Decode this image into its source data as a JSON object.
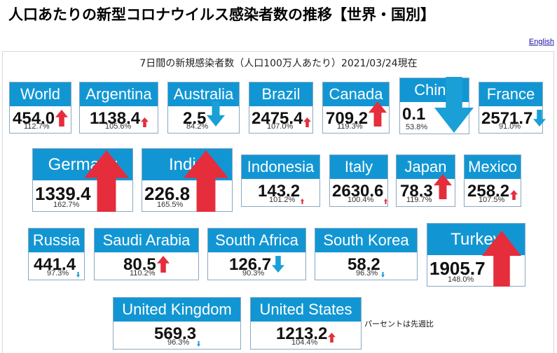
{
  "page_title": "人口あたりの新型コロナウイルス感染者数の推移【世界・国別】",
  "english_link": "English",
  "subtitle": "7日間の新規感染者数（人口100万人あたり）2021/03/24現在",
  "note": "パーセントは先週比",
  "colors": {
    "header": "#1296d3",
    "up": "#e52d3c",
    "down": "#1a9fd6"
  },
  "countries": [
    {
      "name": "World",
      "value": "454.0",
      "pct": "112.7%",
      "trend": "up",
      "change": 112.7
    },
    {
      "name": "Argentina",
      "value": "1138.4",
      "pct": "105.6%",
      "trend": "up",
      "change": 105.6
    },
    {
      "name": "Australia",
      "value": "2.5",
      "pct": "84.2%",
      "trend": "down",
      "change": 84.2
    },
    {
      "name": "Brazil",
      "value": "2475.4",
      "pct": "107.0%",
      "trend": "up",
      "change": 107.0
    },
    {
      "name": "Canada",
      "value": "709.2",
      "pct": "119.3%",
      "trend": "up",
      "change": 119.3
    },
    {
      "name": "China",
      "value": "0.1",
      "pct": "53.8%",
      "trend": "down",
      "change": 53.8
    },
    {
      "name": "France",
      "value": "2571.7",
      "pct": "91.0%",
      "trend": "down",
      "change": 91.0
    },
    {
      "name": "Germany",
      "value": "1339.4",
      "pct": "162.7%",
      "trend": "up",
      "change": 162.7
    },
    {
      "name": "India",
      "value": "226.8",
      "pct": "165.5%",
      "trend": "up",
      "change": 165.5
    },
    {
      "name": "Indonesia",
      "value": "143.2",
      "pct": "101.2%",
      "trend": "up",
      "change": 101.2
    },
    {
      "name": "Italy",
      "value": "2630.6",
      "pct": "100.4%",
      "trend": "up",
      "change": 100.4
    },
    {
      "name": "Japan",
      "value": "78.3",
      "pct": "119.7%",
      "trend": "up",
      "change": 119.7
    },
    {
      "name": "Mexico",
      "value": "258.2",
      "pct": "107.5%",
      "trend": "up",
      "change": 107.5
    },
    {
      "name": "Russia",
      "value": "441.4",
      "pct": "97.3%",
      "trend": "down",
      "change": 97.3
    },
    {
      "name": "Saudi Arabia",
      "value": "80.5",
      "pct": "110.2%",
      "trend": "up",
      "change": 110.2
    },
    {
      "name": "South Africa",
      "value": "126.7",
      "pct": "90.3%",
      "trend": "down",
      "change": 90.3
    },
    {
      "name": "South Korea",
      "value": "58.2",
      "pct": "96.3%",
      "trend": "down",
      "change": 96.3
    },
    {
      "name": "Turkey",
      "value": "1905.7",
      "pct": "148.0%",
      "trend": "up",
      "change": 148.0
    },
    {
      "name": "United Kingdom",
      "value": "569.3",
      "pct": "96.3%",
      "trend": "down",
      "change": 96.3
    },
    {
      "name": "United States",
      "value": "1213.2",
      "pct": "104.4%",
      "trend": "up",
      "change": 104.4
    }
  ]
}
